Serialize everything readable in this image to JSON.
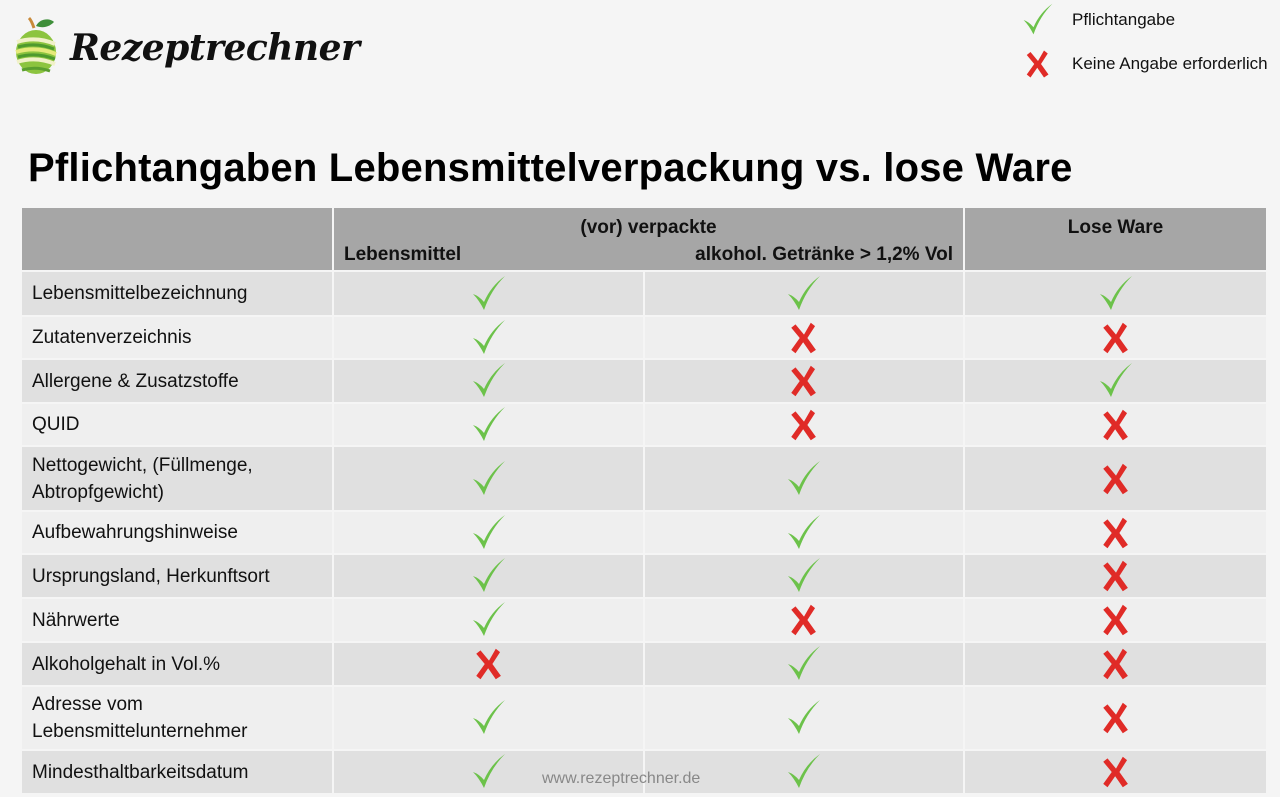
{
  "brand": {
    "name": "Rezeptrechner",
    "logo_icon": "apple-logo-icon"
  },
  "legend": {
    "items": [
      {
        "icon": "check-icon",
        "label": "Pflichtangabe",
        "color": "#6cc24a"
      },
      {
        "icon": "cross-icon",
        "label": "Keine Angabe erforderlich",
        "color": "#e02b27"
      }
    ]
  },
  "title": "Pflichtangaben Lebensmittelverpackung vs. lose Ware",
  "table": {
    "header": {
      "group_label": "(vor) verpackte",
      "col1": "Lebensmittel",
      "col2": "alkohol. Getränke > 1,2% Vol",
      "col3": "Lose Ware"
    },
    "rows": [
      {
        "label": "Lebensmittelbezeichnung",
        "values": [
          "check",
          "check",
          "check"
        ]
      },
      {
        "label": "Zutatenverzeichnis",
        "values": [
          "check",
          "cross",
          "cross"
        ]
      },
      {
        "label": "Allergene & Zusatzstoffe",
        "values": [
          "check",
          "cross",
          "check"
        ]
      },
      {
        "label": "QUID",
        "values": [
          "check",
          "cross",
          "cross"
        ]
      },
      {
        "label": "Nettogewicht, (Füllmenge, Abtropfgewicht)",
        "values": [
          "check",
          "check",
          "cross"
        ]
      },
      {
        "label": "Aufbewahrungshinweise",
        "values": [
          "check",
          "check",
          "cross"
        ]
      },
      {
        "label": "Ursprungsland, Herkunftsort",
        "values": [
          "check",
          "check",
          "cross"
        ]
      },
      {
        "label": "Nährwerte",
        "values": [
          "check",
          "cross",
          "cross"
        ]
      },
      {
        "label": "Alkoholgehalt in Vol.%",
        "values": [
          "cross",
          "check",
          "cross"
        ]
      },
      {
        "label": "Adresse vom Lebensmittelunternehmer",
        "values": [
          "check",
          "check",
          "cross"
        ]
      },
      {
        "label": "Mindesthaltbarkeitsdatum",
        "values": [
          "check",
          "check",
          "cross"
        ]
      }
    ]
  },
  "colors": {
    "check": "#6cc24a",
    "cross": "#e02b27",
    "header_bg": "#a6a6a6",
    "row_even_bg": "#e0e0e0",
    "row_odd_bg": "#efefef",
    "page_bg": "#f5f5f5"
  },
  "watermark": "www.rezeptrechner.de"
}
